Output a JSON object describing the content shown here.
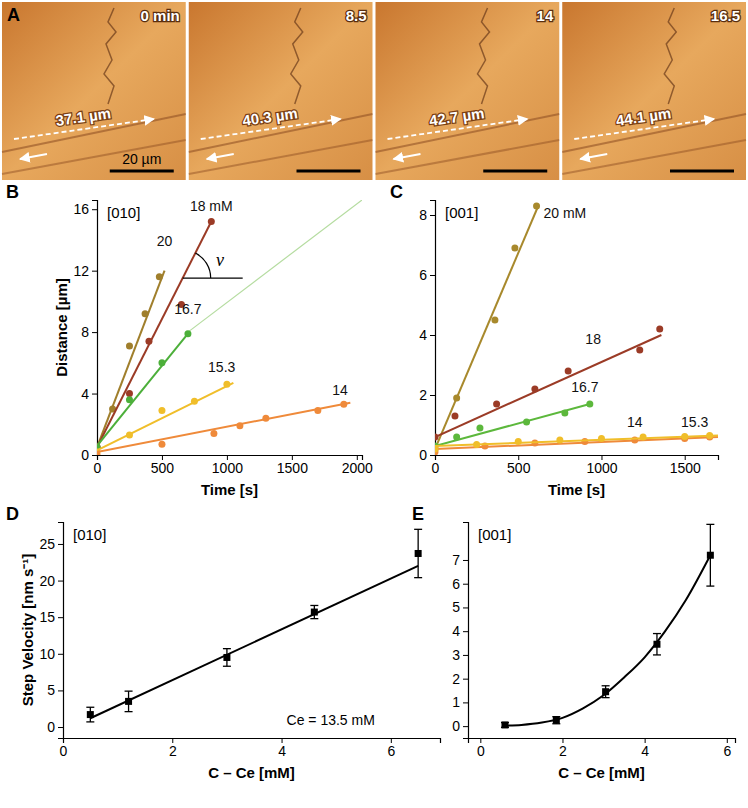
{
  "chart_data": [
    {
      "type": "images",
      "panel": "A",
      "frames": [
        {
          "time": "0 min",
          "distance": "37.1 µm"
        },
        {
          "time": "8.5",
          "distance": "40.3 µm"
        },
        {
          "time": "14",
          "distance": "42.7 µm"
        },
        {
          "time": "16.5",
          "distance": "44.1 µm"
        }
      ],
      "scale_bar": "20 µm"
    },
    {
      "type": "scatter",
      "panel": "B",
      "title": "[010]",
      "x_label": "Time [s]",
      "y_label": "Distance [µm]",
      "xlim": [
        0,
        2040
      ],
      "ylim": [
        0,
        16.6
      ],
      "xticks": [
        0,
        500,
        1000,
        1500,
        2000
      ],
      "yticks": [
        0,
        4,
        8,
        12,
        16
      ],
      "marker": "circle",
      "guide": {
        "x": [
          700,
          2040
        ],
        "y": [
          8,
          16.6
        ],
        "color": "#b5dca0"
      },
      "angle_label": {
        "text": "v",
        "x": 946,
        "y": 12.3
      },
      "series": [
        {
          "name": "20",
          "color": "#a07f2c",
          "x": [
            0,
            120,
            250,
            370,
            480
          ],
          "values": [
            0.5,
            3.0,
            7.1,
            9.2,
            11.6
          ],
          "fit": {
            "x": [
              0,
              520
            ],
            "y": [
              0.5,
              12.0
            ]
          },
          "label_at": [
            520,
            13.6
          ]
        },
        {
          "name": "18 mM",
          "color": "#9b3b26",
          "x": [
            0,
            250,
            400,
            650,
            880
          ],
          "values": [
            0.5,
            4.0,
            7.4,
            9.8,
            15.2
          ],
          "fit": {
            "x": [
              0,
              880
            ],
            "y": [
              0.5,
              15.2
            ]
          },
          "label_at": [
            880,
            15.9
          ]
        },
        {
          "name": "16.7",
          "color": "#4caf3a",
          "x": [
            0,
            250,
            500,
            700
          ],
          "values": [
            0.5,
            3.6,
            6.0,
            7.9
          ],
          "fit": {
            "x": [
              0,
              700
            ],
            "y": [
              0.6,
              7.9
            ]
          },
          "label_at": [
            700,
            9.2
          ]
        },
        {
          "name": "15.3",
          "color": "#f0be2a",
          "x": [
            0,
            250,
            500,
            750,
            1000
          ],
          "values": [
            0.2,
            1.3,
            2.9,
            3.5,
            4.6
          ],
          "fit": {
            "x": [
              0,
              1050
            ],
            "y": [
              0.3,
              4.7
            ]
          },
          "label_at": [
            960,
            5.4
          ]
        },
        {
          "name": "14",
          "color": "#ef8a3a",
          "x": [
            0,
            500,
            900,
            1100,
            1300,
            1700,
            1900
          ],
          "values": [
            0,
            0.7,
            1.4,
            1.9,
            2.4,
            2.9,
            3.3
          ],
          "fit": {
            "x": [
              0,
              1950
            ],
            "y": [
              0.2,
              3.4
            ]
          },
          "label_at": [
            1870,
            3.9
          ]
        }
      ]
    },
    {
      "type": "scatter",
      "panel": "C",
      "title": "[001]",
      "x_label": "Time [s]",
      "xlim": [
        0,
        1700
      ],
      "ylim": [
        0,
        8.5
      ],
      "xticks": [
        0,
        500,
        1000,
        1500
      ],
      "yticks": [
        0,
        2,
        4,
        6,
        8
      ],
      "marker": "circle",
      "series": [
        {
          "name": "20 mM",
          "color": "#a8892c",
          "x": [
            0,
            130,
            360,
            480,
            610
          ],
          "values": [
            0.2,
            1.9,
            4.5,
            6.9,
            8.3
          ],
          "fit": {
            "x": [
              0,
              620
            ],
            "y": [
              0.2,
              8.3
            ]
          },
          "label_at": [
            780,
            7.9
          ]
        },
        {
          "name": "18",
          "color": "#9b3b26",
          "x": [
            0,
            120,
            370,
            600,
            800,
            1230,
            1350
          ],
          "values": [
            0.6,
            1.3,
            1.7,
            2.2,
            2.8,
            3.5,
            4.2
          ],
          "fit": {
            "x": [
              0,
              1360
            ],
            "y": [
              0.6,
              4.0
            ]
          },
          "label_at": [
            950,
            3.7
          ]
        },
        {
          "name": "16.7",
          "color": "#5cb83c",
          "x": [
            0,
            130,
            270,
            550,
            780,
            930
          ],
          "values": [
            0.3,
            0.6,
            0.9,
            1.1,
            1.4,
            1.7
          ],
          "fit": {
            "x": [
              0,
              930
            ],
            "y": [
              0.3,
              1.7
            ]
          },
          "label_at": [
            900,
            2.1
          ]
        },
        {
          "name": "14",
          "color": "#ef8a3a",
          "x": [
            0,
            300,
            600,
            900,
            1200,
            1500,
            1650
          ],
          "values": [
            0.1,
            0.3,
            0.4,
            0.45,
            0.5,
            0.55,
            0.6
          ],
          "fit": {
            "x": [
              0,
              1700
            ],
            "y": [
              0.2,
              0.6
            ]
          },
          "label_at": [
            1200,
            0.95
          ]
        },
        {
          "name": "15.3",
          "color": "#f0be2a",
          "x": [
            0,
            250,
            500,
            750,
            1000,
            1250,
            1500,
            1650
          ],
          "values": [
            0.2,
            0.35,
            0.45,
            0.5,
            0.55,
            0.6,
            0.62,
            0.65
          ],
          "fit": {
            "x": [
              0,
              1700
            ],
            "y": [
              0.3,
              0.65
            ]
          },
          "label_at": [
            1560,
            0.95
          ]
        }
      ]
    },
    {
      "type": "scatter",
      "panel": "D",
      "title": "[010]",
      "x_label": "C – Ce [mM]",
      "y_label": "Step Velocity [nm s⁻¹]",
      "xlim": [
        0,
        6.9
      ],
      "ylim": [
        -1.5,
        28
      ],
      "xticks": [
        0,
        2,
        4,
        6
      ],
      "yticks": [
        0,
        5,
        10,
        15,
        20,
        25
      ],
      "annotation": {
        "text": "Ce = 13.5 mM",
        "x": 4.9,
        "y": 0.3
      },
      "series": [
        {
          "color": "#000000",
          "marker": "square",
          "x": [
            0.5,
            1.2,
            3.0,
            4.6,
            6.5
          ],
          "values": [
            1.7,
            3.5,
            9.5,
            15.7,
            23.7
          ],
          "errors": [
            1.0,
            1.4,
            1.2,
            0.9,
            3.3
          ],
          "fit": {
            "x": [
              0.5,
              6.5
            ],
            "y": [
              1.2,
              22.0
            ]
          }
        }
      ]
    },
    {
      "type": "scatter",
      "panel": "E",
      "title": "[001]",
      "x_label": "C – Ce [mM]",
      "xlim": [
        -0.3,
        6.2
      ],
      "ylim": [
        -0.5,
        8.6
      ],
      "xticks": [
        0,
        2,
        4,
        6
      ],
      "yticks": [
        0,
        1,
        2,
        3,
        4,
        5,
        6,
        7
      ],
      "series": [
        {
          "color": "#000000",
          "marker": "square",
          "x": [
            0.6,
            1.85,
            3.05,
            4.3,
            5.6
          ],
          "values": [
            0.05,
            0.25,
            1.45,
            3.45,
            7.2
          ],
          "errors": [
            0.1,
            0.15,
            0.25,
            0.45,
            1.3
          ],
          "fit": {
            "x": [
              0.6,
              1.0,
              1.5,
              2.0,
              2.5,
              3.0,
              3.5,
              4.0,
              4.5,
              5.0,
              5.6
            ],
            "y": [
              0.02,
              0.05,
              0.15,
              0.35,
              0.75,
              1.3,
              2.05,
              2.9,
              4.0,
              5.3,
              7.2
            ]
          }
        }
      ]
    }
  ]
}
